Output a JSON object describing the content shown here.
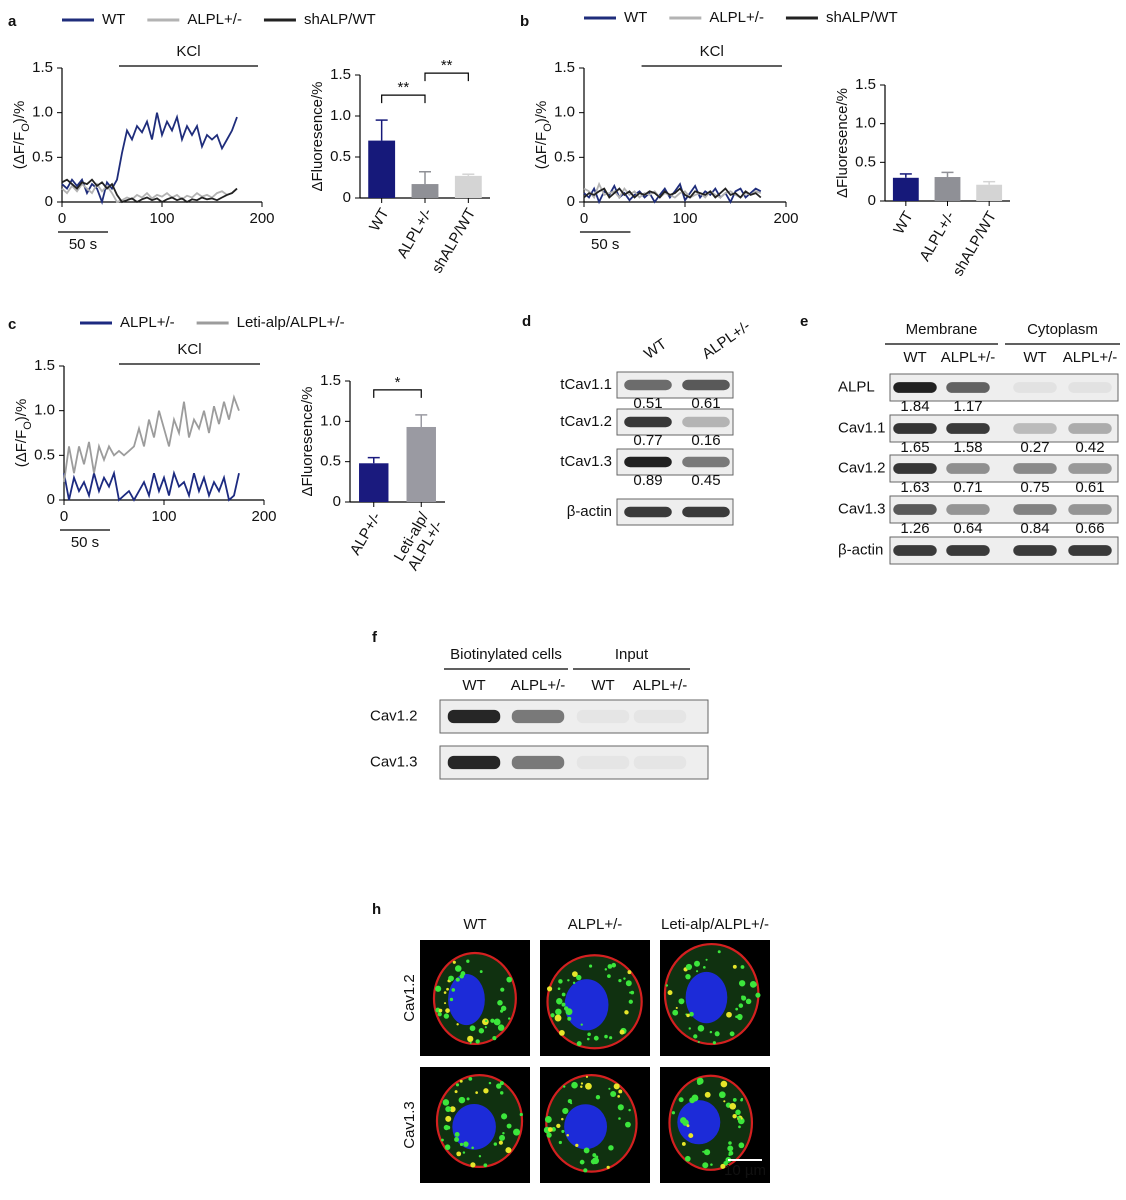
{
  "chart_data": [
    {
      "type": "line",
      "panel_label": "a",
      "ylabel": [
        "(ΔF/F",
        "O",
        ")/%"
      ],
      "x": [
        0,
        5,
        10,
        15,
        20,
        25,
        30,
        35,
        40,
        45,
        50,
        55,
        60,
        65,
        70,
        75,
        80,
        85,
        90,
        95,
        100,
        105,
        110,
        115,
        120,
        125,
        130,
        135,
        140,
        145,
        150,
        155,
        160,
        165,
        170,
        175
      ],
      "series": [
        {
          "name": "WT",
          "color": "#1f2d7b",
          "values": [
            0.2,
            0.15,
            0.25,
            0.18,
            0.25,
            0.1,
            0.2,
            0.15,
            0.0,
            0.22,
            0.15,
            0.25,
            0.55,
            0.8,
            0.7,
            0.85,
            0.78,
            0.9,
            0.7,
            1.0,
            0.75,
            0.9,
            0.8,
            0.95,
            0.7,
            0.85,
            0.75,
            0.85,
            0.62,
            0.75,
            0.7,
            0.75,
            0.6,
            0.7,
            0.8,
            0.95
          ]
        },
        {
          "name": "ALPL+/-",
          "color": "#b3b3b3",
          "values": [
            0.15,
            0.1,
            0.18,
            0.12,
            0.2,
            0.15,
            0.1,
            0.2,
            0.12,
            0.18,
            0.1,
            0.0,
            0.02,
            0.05,
            0.03,
            0.08,
            0.05,
            0.1,
            0.04,
            0.08,
            0.06,
            0.1,
            0.05,
            0.08,
            0.03,
            0.07,
            0.05,
            0.1,
            0.06,
            0.08,
            0.05,
            0.1,
            0.12,
            0.08,
            0.1,
            0.15
          ]
        },
        {
          "name": "shALP/WT",
          "color": "#222222",
          "values": [
            0.22,
            0.25,
            0.2,
            0.15,
            0.22,
            0.2,
            0.25,
            0.18,
            0.22,
            0.15,
            0.2,
            0.08,
            0.0,
            0.02,
            0.04,
            0.0,
            0.03,
            0.05,
            0.02,
            0.04,
            0.0,
            0.03,
            0.05,
            0.02,
            0.04,
            0.0,
            0.03,
            0.02,
            0.05,
            0.03,
            0.04,
            0.02,
            0.05,
            0.08,
            0.1,
            0.15
          ]
        }
      ],
      "xlim": [
        0,
        200
      ],
      "xticks": [
        0,
        100,
        200
      ],
      "ylim": [
        0,
        1.5
      ],
      "yticks": [
        0,
        0.5,
        {
          "value": 1,
          "label": "1.0"
        },
        1.5
      ],
      "annotations": [
        {
          "text": "KCl",
          "x": [
            57,
            196
          ]
        }
      ],
      "scalebar": {
        "label": "50 s",
        "x": [
          -4,
          46
        ]
      }
    },
    {
      "type": "bar",
      "ylabel": "ΔFluoresence/%",
      "categories": [
        "WT",
        "ALPL+/-",
        "shALP/WT"
      ],
      "values": [
        0.7,
        0.17,
        0.27
      ],
      "errors": [
        0.25,
        0.15,
        0.02
      ],
      "colors": [
        "#16197a",
        "#8f9096",
        "#d4d4d4"
      ],
      "ylim": [
        0,
        1.5
      ],
      "yticks": [
        0,
        0.5,
        {
          "value": 1,
          "label": "1.0"
        },
        1.5
      ],
      "significance": [
        {
          "label": "**",
          "between": [
            0,
            1
          ]
        },
        {
          "label": "**",
          "between": [
            1,
            2
          ]
        }
      ]
    },
    {
      "type": "line",
      "panel_label": "b",
      "ylabel": [
        "(ΔF/F",
        "O",
        ")/%"
      ],
      "x": [
        0,
        5,
        10,
        15,
        20,
        25,
        30,
        35,
        40,
        45,
        50,
        55,
        60,
        65,
        70,
        75,
        80,
        85,
        90,
        95,
        100,
        105,
        110,
        115,
        120,
        125,
        130,
        135,
        140,
        145,
        150,
        155,
        160,
        165,
        170,
        175
      ],
      "series": [
        {
          "name": "WT",
          "color": "#1f2d7b",
          "values": [
            0.1,
            0.05,
            0.15,
            0.0,
            0.12,
            0.08,
            0.18,
            0.05,
            0.1,
            0.02,
            0.08,
            0.12,
            0.05,
            0.1,
            0.0,
            0.08,
            0.15,
            0.05,
            0.12,
            0.2,
            0.02,
            0.1,
            0.18,
            0.05,
            0.12,
            0.08,
            0.15,
            0.05,
            0.1,
            0.0,
            0.12,
            0.15,
            0.05,
            0.1,
            0.15,
            0.12
          ]
        },
        {
          "name": "ALPL+/-",
          "color": "#b3b3b3",
          "values": [
            0.15,
            0.12,
            0.05,
            0.2,
            0.08,
            0.1,
            0.12,
            0.05,
            0.15,
            0.08,
            0.12,
            0.05,
            0.1,
            0.08,
            0.12,
            0.05,
            0.1,
            0.08,
            0.05,
            0.1,
            0.12,
            0.05,
            0.08,
            0.1,
            0.05,
            0.12,
            0.08,
            0.05,
            0.1,
            0.12,
            0.08,
            0.05,
            0.1,
            0.08,
            0.12,
            0.1
          ]
        },
        {
          "name": "shALP/WT",
          "color": "#222222",
          "values": [
            0.05,
            0.1,
            0.08,
            0.12,
            0.15,
            0.05,
            0.1,
            0.15,
            0.08,
            0.12,
            0.05,
            0.1,
            0.08,
            0.12,
            0.1,
            0.05,
            0.12,
            0.08,
            0.1,
            0.15,
            0.08,
            0.05,
            0.12,
            0.1,
            0.08,
            0.12,
            0.05,
            0.1,
            0.15,
            0.08,
            0.1,
            0.05,
            0.12,
            0.08,
            0.1,
            0.05
          ]
        }
      ],
      "xlim": [
        0,
        200
      ],
      "xticks": [
        0,
        100,
        200
      ],
      "ylim": [
        0,
        1.5
      ],
      "yticks": [
        0,
        0.5,
        {
          "value": 1,
          "label": "1.0"
        },
        1.5
      ],
      "annotations": [
        {
          "text": "KCl",
          "x": [
            57,
            196
          ]
        }
      ],
      "scalebar": {
        "label": "50 s",
        "x": [
          -4,
          46
        ]
      }
    },
    {
      "type": "bar",
      "ylabel": "ΔFluoresence/%",
      "categories": [
        "WT",
        "ALPL+/-",
        "shALP/WT"
      ],
      "values": [
        0.3,
        0.31,
        0.21
      ],
      "errors": [
        0.05,
        0.06,
        0.04
      ],
      "colors": [
        "#16197a",
        "#8f9096",
        "#d4d4d4"
      ],
      "ylim": [
        0,
        1.5
      ],
      "yticks": [
        0,
        0.5,
        {
          "value": 1,
          "label": "1.0"
        },
        1.5
      ],
      "significance": []
    },
    {
      "type": "line",
      "panel_label": "c",
      "ylabel": [
        "(ΔF/F",
        "O",
        ")/%"
      ],
      "x": [
        0,
        5,
        10,
        15,
        20,
        25,
        30,
        35,
        40,
        45,
        50,
        55,
        60,
        65,
        70,
        75,
        80,
        85,
        90,
        95,
        100,
        105,
        110,
        115,
        120,
        125,
        130,
        135,
        140,
        145,
        150,
        155,
        160,
        165,
        170,
        175
      ],
      "series": [
        {
          "name": "ALPL+/-",
          "color": "#1c2a80",
          "values": [
            0.3,
            0.0,
            0.25,
            0.1,
            0.2,
            0.05,
            0.3,
            0.1,
            0.25,
            0.15,
            0.3,
            0.0,
            0.05,
            0.1,
            0.0,
            0.1,
            0.2,
            0.05,
            0.3,
            0.1,
            0.25,
            0.05,
            0.3,
            0.15,
            0.2,
            0.05,
            0.3,
            0.1,
            0.25,
            0.05,
            0.2,
            0.1,
            0.25,
            0.0,
            0.05,
            0.3
          ]
        },
        {
          "name": "Leti-alp/ALPL+/-",
          "color": "#9c9c9c",
          "values": [
            0.2,
            0.6,
            0.3,
            0.6,
            0.4,
            0.65,
            0.3,
            0.6,
            0.45,
            0.6,
            0.5,
            0.55,
            0.5,
            0.55,
            0.6,
            0.8,
            0.6,
            0.9,
            0.7,
            1.0,
            0.8,
            0.6,
            0.9,
            0.75,
            1.1,
            0.7,
            0.9,
            0.8,
            1.0,
            0.75,
            1.05,
            0.85,
            1.1,
            0.9,
            1.15,
            1.0
          ]
        }
      ],
      "xlim": [
        0,
        200
      ],
      "xticks": [
        0,
        100,
        200
      ],
      "ylim": [
        0,
        1.5
      ],
      "yticks": [
        0,
        0.5,
        {
          "value": 1,
          "label": "1.0"
        },
        1.5
      ],
      "annotations": [
        {
          "text": "KCl",
          "x": [
            55,
            196
          ]
        }
      ],
      "scalebar": {
        "label": "50 s",
        "x": [
          -4,
          46
        ]
      }
    },
    {
      "type": "bar",
      "ylabel": "ΔFluoresence/%",
      "categories": [
        "ALP+/-",
        "Leti-alp/\nALPL+/-"
      ],
      "values": [
        0.48,
        0.93
      ],
      "errors": [
        0.07,
        0.15
      ],
      "colors": [
        "#1a1a7e",
        "#9a9aa2"
      ],
      "ylim": [
        0,
        1.5
      ],
      "yticks": [
        0,
        0.5,
        {
          "value": 1,
          "label": "1.0"
        },
        1.5
      ],
      "significance": [
        {
          "label": "*",
          "between": [
            0,
            1
          ]
        }
      ]
    }
  ],
  "blots": [
    {
      "panel_label": "d",
      "columns": [
        "WT",
        "ALPL+/-"
      ],
      "rows": [
        {
          "label": "tCav1.1",
          "values": [
            0.51,
            0.61
          ]
        },
        {
          "label": "tCav1.2",
          "values": [
            0.77,
            0.16
          ]
        },
        {
          "label": "tCav1.3",
          "values": [
            0.89,
            0.45
          ]
        },
        {
          "label": "β-actin"
        }
      ]
    },
    {
      "panel_label": "e",
      "groups": [
        {
          "label": "Membrane",
          "columns": [
            "WT",
            "ALPL+/-"
          ]
        },
        {
          "label": "Cytoplasm",
          "columns": [
            "WT",
            "ALPL+/-"
          ]
        }
      ],
      "rows": [
        {
          "label": "ALPL",
          "values": [
            1.84,
            1.17,
            null,
            null
          ]
        },
        {
          "label": "Cav1.1",
          "values": [
            1.65,
            1.58,
            0.27,
            0.42
          ]
        },
        {
          "label": "Cav1.2",
          "values": [
            1.63,
            0.71,
            0.75,
            0.61
          ]
        },
        {
          "label": "Cav1.3",
          "values": [
            1.26,
            0.64,
            0.84,
            0.66
          ]
        },
        {
          "label": "β-actin"
        }
      ]
    },
    {
      "panel_label": "f",
      "groups": [
        {
          "label": "Biotinylated cells",
          "columns": [
            "WT",
            "ALPL+/-"
          ]
        },
        {
          "label": "Input",
          "columns": [
            "WT",
            "ALPL+/-"
          ]
        }
      ],
      "rows": [
        {
          "label": "Cav1.2"
        },
        {
          "label": "Cav1.3"
        }
      ]
    }
  ],
  "images": {
    "panel_label": "h",
    "columns": [
      "WT",
      "ALPL+/-",
      "Leti-alp/ALPL+/-"
    ],
    "rows": [
      "Cav1.2",
      "Cav1.3"
    ],
    "scalebar": "10 µm"
  }
}
